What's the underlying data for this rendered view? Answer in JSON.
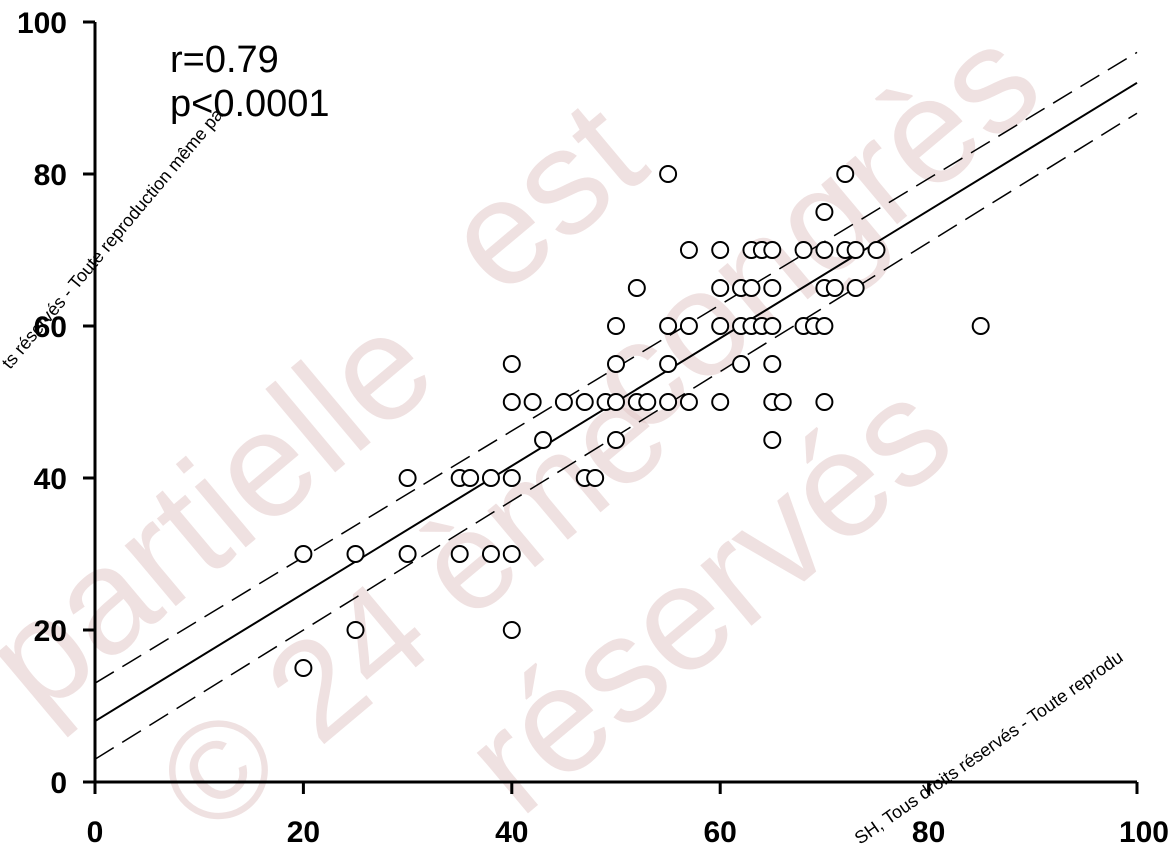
{
  "chart_data": {
    "type": "scatter",
    "title": "",
    "xlabel": "",
    "ylabel": "",
    "xlim": [
      0,
      100
    ],
    "ylim": [
      0,
      100
    ],
    "xticks": [
      "0",
      "20",
      "40",
      "60",
      "80",
      "100"
    ],
    "yticks": [
      "0",
      "20",
      "40",
      "60",
      "80",
      "100"
    ],
    "grid": false,
    "annotations": [
      "r=0.79",
      "p<0.0001"
    ],
    "regression": {
      "line": {
        "intercept": 8,
        "slope": 0.84
      },
      "ci_upper": [
        [
          0,
          13
        ],
        [
          100,
          96
        ]
      ],
      "ci_lower": [
        [
          0,
          3
        ],
        [
          100,
          88
        ]
      ]
    },
    "points": [
      [
        20,
        30
      ],
      [
        20,
        15
      ],
      [
        25,
        30
      ],
      [
        25,
        20
      ],
      [
        30,
        40
      ],
      [
        30,
        30
      ],
      [
        35,
        40
      ],
      [
        35,
        30
      ],
      [
        36,
        40
      ],
      [
        38,
        40
      ],
      [
        38,
        30
      ],
      [
        40,
        40
      ],
      [
        40,
        30
      ],
      [
        40,
        20
      ],
      [
        40,
        55
      ],
      [
        40,
        50
      ],
      [
        42,
        50
      ],
      [
        43,
        45
      ],
      [
        45,
        50
      ],
      [
        47,
        50
      ],
      [
        47,
        40
      ],
      [
        48,
        40
      ],
      [
        49,
        50
      ],
      [
        50,
        50
      ],
      [
        50,
        60
      ],
      [
        50,
        55
      ],
      [
        50,
        45
      ],
      [
        52,
        50
      ],
      [
        52,
        65
      ],
      [
        53,
        50
      ],
      [
        55,
        80
      ],
      [
        55,
        60
      ],
      [
        55,
        55
      ],
      [
        55,
        50
      ],
      [
        57,
        70
      ],
      [
        57,
        60
      ],
      [
        57,
        50
      ],
      [
        60,
        70
      ],
      [
        60,
        65
      ],
      [
        60,
        60
      ],
      [
        60,
        50
      ],
      [
        62,
        65
      ],
      [
        62,
        60
      ],
      [
        62,
        55
      ],
      [
        63,
        70
      ],
      [
        63,
        65
      ],
      [
        63,
        60
      ],
      [
        64,
        70
      ],
      [
        64,
        60
      ],
      [
        65,
        70
      ],
      [
        65,
        65
      ],
      [
        65,
        60
      ],
      [
        65,
        55
      ],
      [
        65,
        50
      ],
      [
        65,
        45
      ],
      [
        66,
        50
      ],
      [
        68,
        70
      ],
      [
        68,
        60
      ],
      [
        69,
        60
      ],
      [
        70,
        75
      ],
      [
        70,
        70
      ],
      [
        70,
        65
      ],
      [
        70,
        60
      ],
      [
        70,
        50
      ],
      [
        71,
        65
      ],
      [
        72,
        80
      ],
      [
        72,
        70
      ],
      [
        73,
        70
      ],
      [
        73,
        65
      ],
      [
        75,
        70
      ],
      [
        85,
        60
      ]
    ]
  },
  "watermark": {
    "big": [
      "partielle",
      "est",
      "congrès",
      "© 24 ème",
      "réservés"
    ],
    "small_1": "ts réservés - Toute reproduction même pa",
    "small_2": "SH, Tous droits réservés - Toute reprodu"
  }
}
